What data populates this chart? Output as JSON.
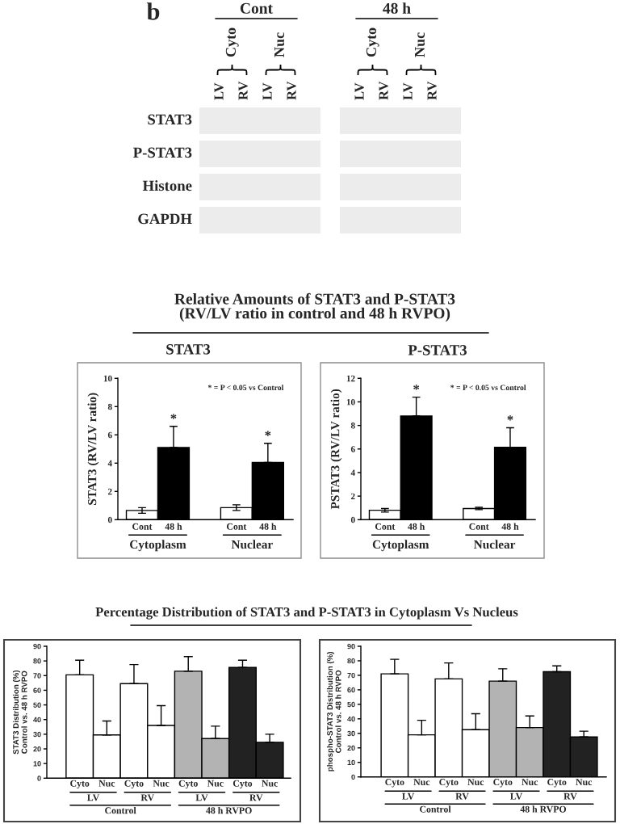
{
  "chart_data": [
    {
      "type": "other",
      "title": "b",
      "categories": [
        "LV",
        "RV",
        "LV",
        "RV",
        "LV",
        "RV",
        "LV",
        "RV"
      ],
      "y_categories": [
        "STAT3",
        "P-STAT3",
        "Histone",
        "GAPDH"
      ],
      "annotations": [
        "Cyto",
        "Nuc",
        "Cyto",
        "Nuc",
        "Cont",
        "48 h"
      ]
    },
    {
      "type": "other",
      "title": "Relative Amounts of STAT3 and P-STAT3\n(RV/LV ratio in control and 48 h RVPO)"
    },
    {
      "type": "bar",
      "title": "STAT3",
      "ylabel": "STAT3 (RV/LV ratio)",
      "categories": [
        "Cont",
        "48 h",
        null,
        "Cont",
        "48 h"
      ],
      "values": [
        0.65,
        5.1,
        null,
        0.85,
        4.05
      ],
      "colors": [
        "#ffffff",
        "#000000",
        null,
        "#ffffff",
        "#000000"
      ],
      "errors": [
        0.2,
        [
          5.1,
          6.6
        ],
        null,
        0.2,
        [
          4.05,
          5.4
        ]
      ],
      "value_labels": [
        null,
        "*",
        null,
        null,
        "*"
      ],
      "ylim": [
        0,
        10
      ],
      "yticks": [
        0,
        2,
        4,
        6,
        8,
        10
      ],
      "annotations": [
        "* = P < 0.05 vs Control",
        "Cytoplasm",
        "Nuclear"
      ]
    },
    {
      "type": "bar",
      "title": "P-STAT3",
      "ylabel": "PSTAT3 (RV/LV ratio)",
      "categories": [
        "Cont",
        "48 h",
        null,
        "Cont",
        "48 h"
      ],
      "values": [
        0.8,
        8.8,
        null,
        0.95,
        6.15
      ],
      "colors": [
        "#ffffff",
        "#000000",
        null,
        "#ffffff",
        "#000000"
      ],
      "errors": [
        0.15,
        [
          8.8,
          10.4
        ],
        null,
        0.1,
        [
          6.15,
          7.8
        ]
      ],
      "value_labels": [
        null,
        "*",
        null,
        null,
        "*"
      ],
      "ylim": [
        0,
        12
      ],
      "yticks": [
        0,
        2,
        4,
        6,
        8,
        10,
        12
      ],
      "annotations": [
        "* = P < 0.05 vs Control",
        "Cytoplasm",
        "Nuclear"
      ]
    },
    {
      "type": "other",
      "title": "Percentage Distribution of STAT3 and P-STAT3 in Cytoplasm Vs Nucleus"
    },
    {
      "type": "bar",
      "ylabel": "STAT3 Distribution (%)\nControl vs. 48 h RVPO",
      "categories": [
        "Cyto",
        "Nuc",
        "Cyto",
        "Nuc",
        "Cyto",
        "Nuc",
        "Cyto",
        "Nuc"
      ],
      "values": [
        70.5,
        29.5,
        64.5,
        36,
        73,
        27,
        75.5,
        24.5
      ],
      "colors": [
        "#ffffff",
        "#ffffff",
        "#ffffff",
        "#ffffff",
        "#b3b3b3",
        "#b3b3b3",
        "#222222",
        "#222222"
      ],
      "errors": [
        [
          70.5,
          80.5
        ],
        [
          29.5,
          39
        ],
        [
          64.5,
          77.5
        ],
        [
          36,
          49.5
        ],
        [
          73,
          83
        ],
        [
          27,
          35.5
        ],
        [
          75.5,
          80.5
        ],
        [
          24.5,
          30
        ]
      ],
      "ylim": [
        0,
        90
      ],
      "yticks": [
        0,
        10,
        20,
        30,
        40,
        50,
        60,
        70,
        80,
        90
      ],
      "annotations": [
        "LV",
        "RV",
        "LV",
        "RV",
        "Control",
        "48 h RVPO"
      ]
    },
    {
      "type": "bar",
      "ylabel": "phospho-STAT3 Distribution (%)\nControl vs. 48 h RVPO",
      "categories": [
        "Cyto",
        "Nuc",
        "Cyto",
        "Nuc",
        "Cyto",
        "Nuc",
        "Cyto",
        "Nuc"
      ],
      "values": [
        71,
        29,
        67.5,
        32.5,
        66,
        34,
        72.5,
        27.5
      ],
      "colors": [
        "#ffffff",
        "#ffffff",
        "#ffffff",
        "#ffffff",
        "#b3b3b3",
        "#b3b3b3",
        "#222222",
        "#222222"
      ],
      "errors": [
        [
          71,
          81
        ],
        [
          29,
          39
        ],
        [
          67.5,
          78.5
        ],
        [
          32.5,
          43.5
        ],
        [
          66,
          74.5
        ],
        [
          34,
          42
        ],
        [
          72.5,
          76.5
        ],
        [
          27.5,
          31.5
        ]
      ],
      "ylim": [
        0,
        90
      ],
      "yticks": [
        0,
        10,
        20,
        30,
        40,
        50,
        60,
        70,
        80,
        90
      ],
      "annotations": [
        "LV",
        "RV",
        "LV",
        "RV",
        "Control",
        "48 h RVPO"
      ]
    }
  ]
}
